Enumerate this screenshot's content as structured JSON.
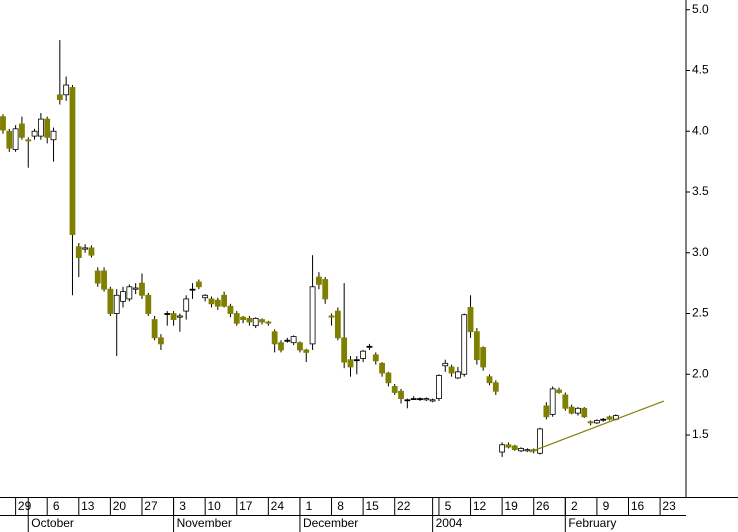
{
  "chart_data": {
    "type": "candlestick",
    "x": [
      0,
      1,
      2,
      3,
      4,
      5,
      6,
      7,
      8,
      9,
      10,
      11,
      12,
      13,
      14,
      15,
      16,
      17,
      18,
      19,
      20,
      21,
      22,
      23,
      24,
      25,
      26,
      27,
      28,
      29,
      30,
      31,
      32,
      33,
      34,
      35,
      36,
      37,
      38,
      39,
      40,
      41,
      42,
      43,
      44,
      45,
      46,
      47,
      48,
      49,
      50,
      51,
      52,
      53,
      54,
      55,
      56,
      57,
      58,
      59,
      60,
      61,
      62,
      63,
      64,
      65,
      66,
      67,
      68,
      69,
      70,
      71,
      72,
      73,
      74,
      75,
      76,
      77,
      78,
      79,
      80,
      81,
      82,
      83,
      84,
      85,
      86,
      87,
      88,
      89,
      90,
      91,
      92,
      93,
      94,
      95,
      96,
      97
    ],
    "open": [
      4.12,
      4.0,
      3.85,
      4.06,
      3.93,
      3.96,
      3.96,
      4.1,
      3.93,
      4.3,
      4.3,
      4.36,
      3.05,
      3.03,
      3.04,
      2.85,
      2.85,
      2.7,
      2.5,
      2.6,
      2.62,
      2.7,
      2.75,
      2.65,
      2.45,
      2.3,
      2.5,
      2.5,
      2.47,
      2.52,
      2.7,
      2.76,
      2.63,
      2.62,
      2.61,
      2.65,
      2.56,
      2.5,
      2.47,
      2.46,
      2.4,
      2.45,
      2.43,
      2.35,
      2.26,
      2.28,
      2.26,
      2.26,
      2.2,
      2.25,
      2.8,
      2.78,
      2.48,
      2.52,
      2.3,
      2.12,
      2.12,
      2.13,
      2.23,
      2.16,
      2.09,
      2.01,
      1.9,
      1.86,
      1.79,
      1.8,
      1.8,
      1.79,
      1.78,
      1.8,
      2.07,
      2.06,
      1.97,
      2.0,
      2.55,
      2.35,
      2.22,
      1.98,
      1.93,
      1.36,
      1.42,
      1.41,
      1.37,
      1.37,
      1.38,
      1.35,
      1.74,
      1.67,
      1.87,
      1.83,
      1.73,
      1.68,
      1.72,
      1.61,
      1.6,
      1.63,
      1.65,
      1.63
    ],
    "high": [
      4.14,
      4.02,
      4.05,
      4.12,
      3.95,
      4.02,
      4.15,
      4.12,
      4.03,
      4.75,
      4.45,
      4.38,
      3.08,
      3.07,
      3.06,
      2.88,
      2.88,
      2.72,
      2.7,
      2.72,
      2.74,
      2.75,
      2.83,
      2.67,
      2.48,
      2.33,
      2.52,
      2.52,
      2.5,
      2.65,
      2.75,
      2.78,
      2.66,
      2.64,
      2.63,
      2.68,
      2.58,
      2.52,
      2.48,
      2.48,
      2.47,
      2.46,
      2.44,
      2.37,
      2.28,
      2.3,
      2.32,
      2.27,
      2.21,
      2.98,
      2.84,
      2.8,
      2.5,
      2.55,
      2.75,
      2.15,
      2.15,
      2.2,
      2.25,
      2.18,
      2.1,
      2.02,
      1.92,
      1.88,
      1.8,
      1.82,
      1.81,
      1.81,
      1.8,
      2.0,
      2.12,
      2.08,
      2.06,
      2.5,
      2.65,
      2.38,
      2.23,
      2.0,
      1.95,
      1.44,
      1.44,
      1.42,
      1.4,
      1.39,
      1.39,
      1.56,
      1.77,
      1.9,
      1.89,
      1.85,
      1.75,
      1.73,
      1.73,
      1.62,
      1.63,
      1.64,
      1.66,
      1.67
    ],
    "low": [
      3.98,
      3.83,
      3.83,
      3.93,
      3.7,
      3.93,
      3.93,
      3.9,
      3.75,
      4.22,
      4.25,
      2.65,
      2.8,
      3.0,
      2.96,
      2.72,
      2.68,
      2.48,
      2.15,
      2.55,
      2.6,
      2.66,
      2.62,
      2.48,
      2.28,
      2.2,
      2.4,
      2.4,
      2.35,
      2.45,
      2.62,
      2.7,
      2.6,
      2.55,
      2.53,
      2.55,
      2.47,
      2.4,
      2.42,
      2.4,
      2.38,
      2.41,
      2.4,
      2.18,
      2.18,
      2.26,
      2.24,
      2.18,
      2.1,
      2.2,
      2.7,
      2.58,
      2.4,
      2.28,
      2.05,
      1.98,
      2.0,
      2.1,
      2.2,
      2.08,
      1.98,
      1.9,
      1.83,
      1.76,
      1.72,
      1.79,
      1.78,
      1.78,
      1.77,
      1.78,
      2.02,
      1.98,
      1.96,
      1.98,
      2.3,
      2.08,
      2.03,
      1.91,
      1.83,
      1.32,
      1.39,
      1.37,
      1.36,
      1.36,
      1.35,
      1.34,
      1.63,
      1.65,
      1.84,
      1.7,
      1.67,
      1.66,
      1.64,
      1.58,
      1.59,
      1.61,
      1.62,
      1.62
    ],
    "close": [
      4.01,
      3.86,
      4.02,
      3.95,
      3.92,
      4.0,
      4.1,
      3.95,
      4.0,
      4.26,
      4.38,
      3.15,
      2.96,
      3.04,
      2.98,
      2.75,
      2.7,
      2.5,
      2.65,
      2.68,
      2.72,
      2.71,
      2.65,
      2.5,
      2.3,
      2.25,
      2.5,
      2.45,
      2.48,
      2.62,
      2.7,
      2.72,
      2.65,
      2.58,
      2.56,
      2.56,
      2.5,
      2.42,
      2.45,
      2.43,
      2.46,
      2.43,
      2.42,
      2.25,
      2.2,
      2.28,
      2.31,
      2.2,
      2.18,
      2.72,
      2.74,
      2.62,
      2.47,
      2.3,
      2.1,
      2.06,
      2.12,
      2.19,
      2.23,
      2.11,
      2.01,
      1.93,
      1.85,
      1.8,
      1.79,
      1.8,
      1.8,
      1.8,
      1.79,
      1.99,
      2.09,
      2.01,
      2.02,
      2.49,
      2.35,
      2.12,
      2.06,
      1.93,
      1.86,
      1.42,
      1.4,
      1.38,
      1.39,
      1.38,
      1.37,
      1.55,
      1.65,
      1.88,
      1.85,
      1.72,
      1.68,
      1.72,
      1.65,
      1.6,
      1.62,
      1.63,
      1.63,
      1.66
    ],
    "up_color": "#ffffff",
    "down_color": "#808000",
    "wick_color": "#000000",
    "trendline": {
      "x": [
        83.4,
        104.6
      ],
      "y": [
        1.36,
        1.78
      ],
      "color": "#808000"
    },
    "xlim": [
      -0.47,
      108.1
    ],
    "xticks": [
      {
        "value": 2,
        "label": "29"
      },
      {
        "value": 7,
        "label": "6"
      },
      {
        "value": 12,
        "label": "13"
      },
      {
        "value": 17,
        "label": "20"
      },
      {
        "value": 22,
        "label": "27"
      },
      {
        "value": 27,
        "label": "3"
      },
      {
        "value": 32,
        "label": "10"
      },
      {
        "value": 37,
        "label": "17"
      },
      {
        "value": 42,
        "label": "24"
      },
      {
        "value": 47,
        "label": "1"
      },
      {
        "value": 52,
        "label": "8"
      },
      {
        "value": 57,
        "label": "15"
      },
      {
        "value": 62,
        "label": "22"
      },
      {
        "value": 69,
        "label": "5"
      },
      {
        "value": 74,
        "label": "12"
      },
      {
        "value": 79,
        "label": "19"
      },
      {
        "value": 84,
        "label": "26"
      },
      {
        "value": 89,
        "label": "2"
      },
      {
        "value": 94,
        "label": "9"
      },
      {
        "value": 99,
        "label": "16"
      },
      {
        "value": 104,
        "label": "23"
      }
    ],
    "month_ticks": [
      {
        "value": 4,
        "label": "October"
      },
      {
        "value": 27,
        "label": "November"
      },
      {
        "value": 47,
        "label": "December"
      },
      {
        "value": 68,
        "label": "2004"
      },
      {
        "value": 89,
        "label": "February"
      }
    ],
    "ylim": [
      0.99,
      5.08
    ],
    "yticks": [
      1.5,
      {
        "value": 2,
        "label": "2.0"
      },
      2.5,
      {
        "value": 3,
        "label": "3.0"
      },
      3.5,
      {
        "value": 4,
        "label": "4.0"
      },
      4.5,
      {
        "value": 5,
        "label": "5.0"
      }
    ]
  }
}
